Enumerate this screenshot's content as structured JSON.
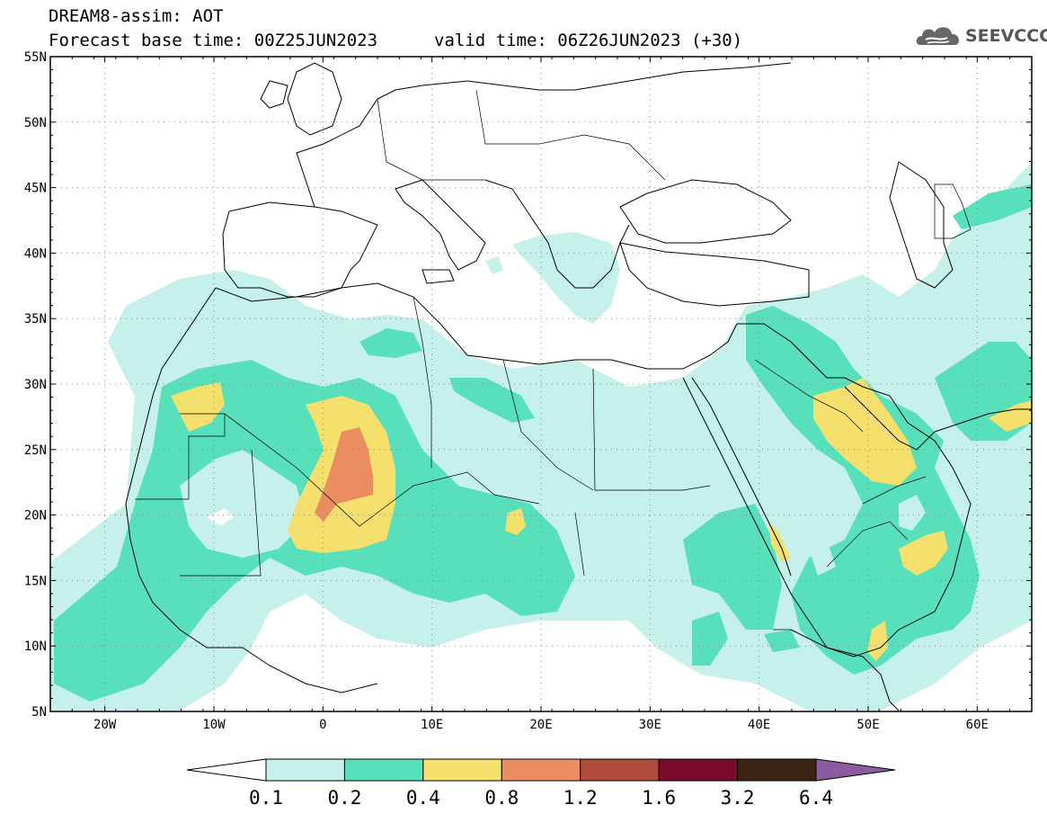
{
  "header": {
    "title": "DREAM8-assim: AOT",
    "base_time": "Forecast base time: 00Z25JUN2023",
    "valid_time": "valid time: 06Z26JUN2023 (+30)",
    "logo_text": "SEEVCCC",
    "logo_icon": "cloud-logo-icon"
  },
  "map": {
    "lon_range": [
      -25,
      65
    ],
    "lat_range": [
      5,
      55
    ],
    "lat_ticks": [
      "55N",
      "50N",
      "45N",
      "40N",
      "35N",
      "30N",
      "25N",
      "20N",
      "15N",
      "10N",
      "5N"
    ],
    "lat_values": [
      55,
      50,
      45,
      40,
      35,
      30,
      25,
      20,
      15,
      10,
      5
    ],
    "lon_ticks": [
      "20W",
      "10W",
      "0",
      "10E",
      "20E",
      "30E",
      "40E",
      "50E",
      "60E"
    ],
    "lon_values": [
      -20,
      -10,
      0,
      10,
      20,
      30,
      40,
      50,
      60
    ],
    "grid": "dotted"
  },
  "colorbar": {
    "labels": [
      "0.1",
      "0.2",
      "0.4",
      "0.8",
      "1.2",
      "1.6",
      "3.2",
      "6.4"
    ],
    "colors": [
      "#ffffff",
      "#c5f1ea",
      "#58e0ba",
      "#f5e06e",
      "#ea8e62",
      "#b04b3c",
      "#7a0b2a",
      "#3c2414",
      "#8c5ca0"
    ]
  },
  "colors": {
    "aot_0_1": "#c5f1ea",
    "aot_0_2": "#58e0ba",
    "aot_0_4": "#f5e06e",
    "aot_0_8": "#ea8e62"
  }
}
